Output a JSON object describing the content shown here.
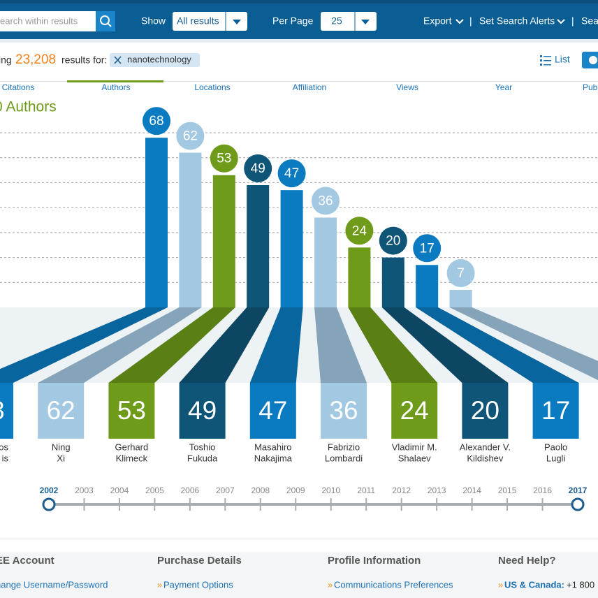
{
  "toolbar": {
    "search_placeholder": "earch within results",
    "show_label": "Show",
    "show_value": "All results",
    "per_page_label": "Per Page",
    "per_page_value": "25",
    "export": "Export",
    "separator": "|",
    "alerts": "Set Search Alerts",
    "search_cut": "Sea"
  },
  "results": {
    "prefix": "ing",
    "count": "23,208",
    "suffix": "results for:",
    "term": "nanotechnology",
    "view": "List"
  },
  "tabs": [
    "Citations",
    "Authors",
    "Locations",
    "Affiliation",
    "Views",
    "Year",
    "Publ"
  ],
  "chart_data": {
    "type": "bar",
    "title": "0 Authors",
    "categories": [
      [
        "os",
        "is"
      ],
      [
        "Ning",
        "Xi"
      ],
      [
        "Gerhard",
        "Klimeck"
      ],
      [
        "Toshio",
        "Fukuda"
      ],
      [
        "Masahiro",
        "Nakajima"
      ],
      [
        "Fabrizio",
        "Lombardi"
      ],
      [
        "Vladimir M.",
        "Shalaev"
      ],
      [
        "Alexander V.",
        "Kildishev"
      ],
      [
        "Paolo",
        "Lugli"
      ],
      null
    ],
    "values": [
      68,
      62,
      53,
      49,
      47,
      36,
      24,
      20,
      17,
      7
    ],
    "colors": [
      "#0b7bc1",
      "#a3c8e2",
      "#6e9b1a",
      "#0f5577",
      "#0b7bc1",
      "#a3c8e2",
      "#6e9b1a",
      "#0f5577",
      "#0b7bc1",
      "#a3c8e2"
    ],
    "ylim": [
      0,
      70
    ],
    "yticks": [
      10,
      20,
      30,
      40,
      50,
      60,
      70
    ],
    "grid": true
  },
  "timeline": {
    "years": [
      2002,
      2003,
      2004,
      2005,
      2006,
      2007,
      2008,
      2009,
      2010,
      2011,
      2012,
      2013,
      2014,
      2015,
      2016,
      2017
    ]
  },
  "footer": {
    "bullet": "»",
    "columns": [
      {
        "heading": "EE Account",
        "link": "hange Username/Password"
      },
      {
        "heading": "Purchase Details",
        "link": "Payment Options"
      },
      {
        "heading": "Profile Information",
        "link": "Communications Preferences"
      },
      {
        "heading": "Need Help?",
        "link": "US & Canada:",
        "extra": "+1 800"
      }
    ]
  }
}
